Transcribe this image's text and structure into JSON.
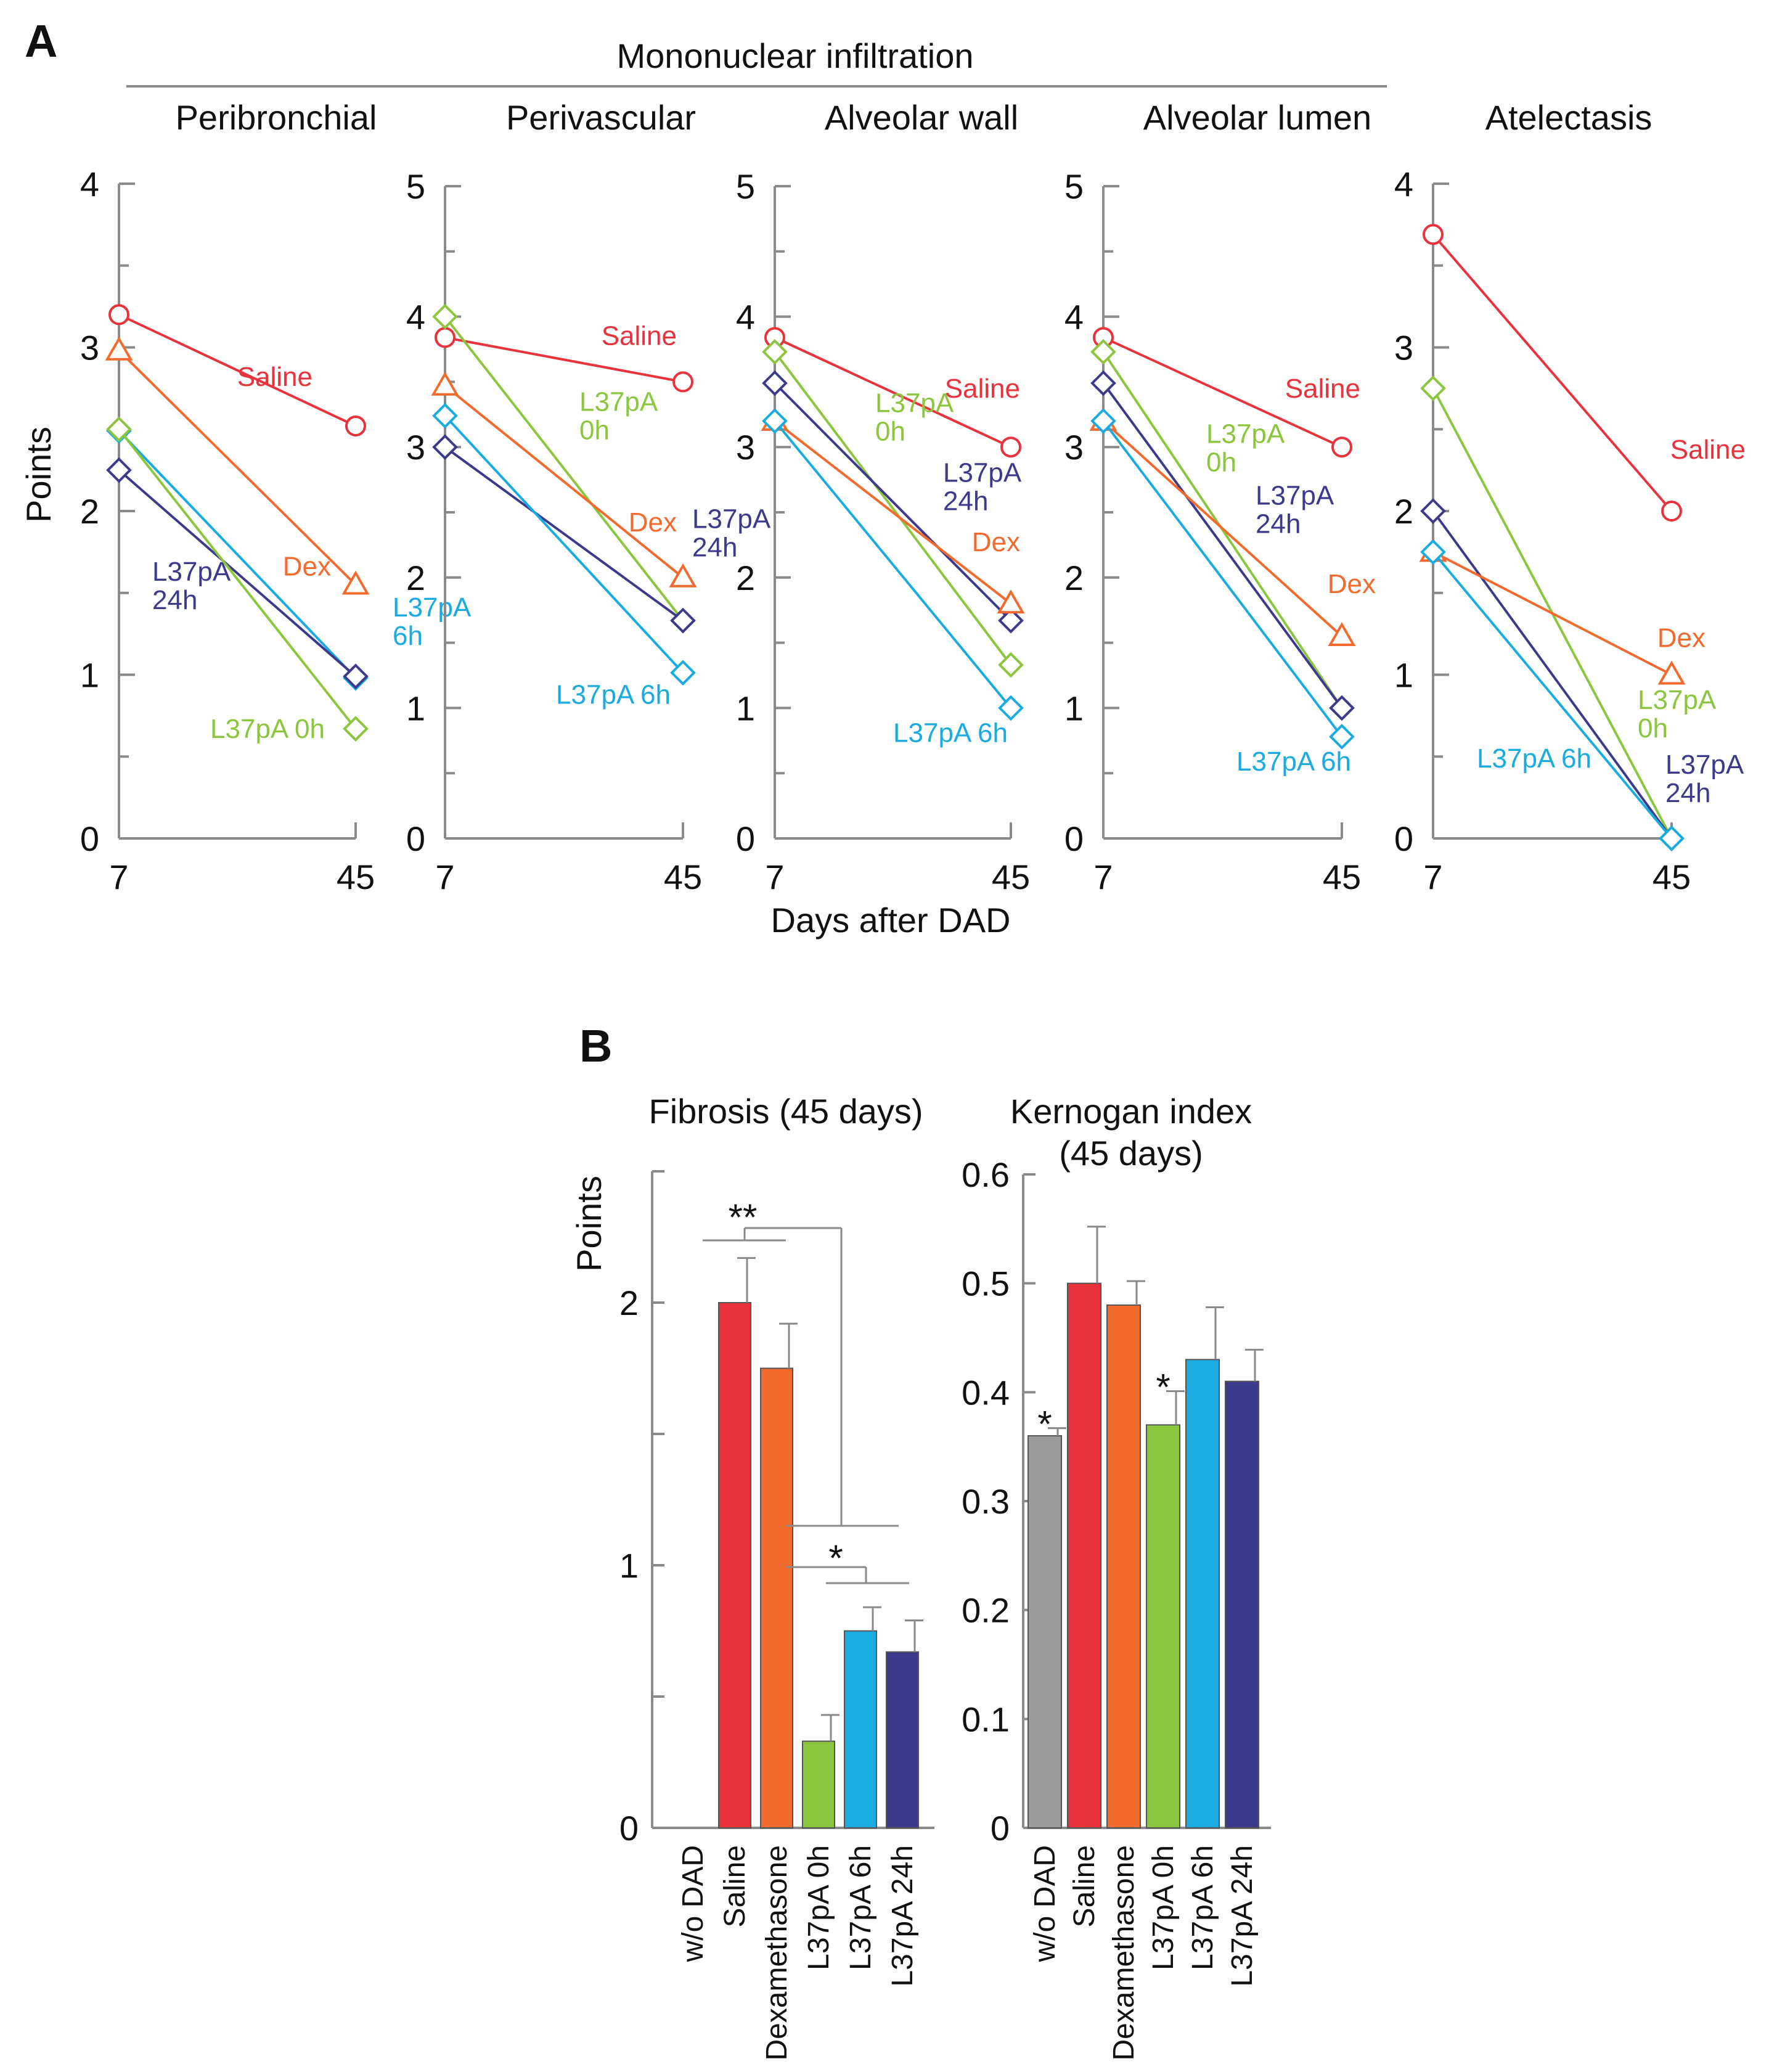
{
  "colors": {
    "saline": "#e8323c",
    "dex": "#f26a2e",
    "l0": "#8cc63f",
    "l6": "#1aabe0",
    "l24": "#3d3a8c",
    "wo": "#9b9b9b",
    "axis": "#8a8a8a",
    "text": "#1a1a1a"
  },
  "panel_a": {
    "letter": "A",
    "group_title": "Mononuclear infiltration",
    "ylabel": "Points",
    "xlabel": "Days after DAD",
    "x_ticks": [
      "7",
      "45"
    ]
  },
  "panel_b": {
    "letter": "B",
    "fib_title": "Fibrosis (45 days)",
    "ker_title_line1": "Kernogan index",
    "ker_title_line2": "(45 days)",
    "ylabel": "Points",
    "star2": "**",
    "star1": "*"
  },
  "chart_data": [
    {
      "type": "line",
      "id": "peri",
      "title": "Peribronchial",
      "x": [
        7,
        45
      ],
      "ylim": [
        0,
        4
      ],
      "yticks": [
        0,
        1,
        2,
        3,
        4
      ],
      "series": [
        {
          "name": "Saline",
          "key": "saline",
          "marker": "circle",
          "values": [
            3.2,
            2.52
          ],
          "label_lines": [
            "Saline"
          ]
        },
        {
          "name": "Dex",
          "key": "dex",
          "marker": "triangle",
          "values": [
            2.98,
            1.55
          ],
          "label_lines": [
            "Dex"
          ]
        },
        {
          "name": "L37pA 6h",
          "key": "l6",
          "marker": "diamond",
          "values": [
            2.49,
            0.98
          ],
          "label_lines": [
            "L37pA",
            "6h"
          ]
        },
        {
          "name": "L37pA 24h",
          "key": "l24",
          "marker": "diamond",
          "values": [
            2.25,
            0.99
          ],
          "label_lines": [
            "L37pA",
            "24h"
          ]
        },
        {
          "name": "L37pA 0h",
          "key": "l0",
          "marker": "diamond",
          "values": [
            2.5,
            0.67
          ],
          "label_lines": [
            "L37pA 0h"
          ]
        }
      ]
    },
    {
      "type": "line",
      "id": "periv",
      "title": "Perivascular",
      "x": [
        7,
        45
      ],
      "ylim": [
        0,
        5
      ],
      "yticks": [
        0,
        1,
        2,
        3,
        4,
        5
      ],
      "series": [
        {
          "name": "Saline",
          "key": "saline",
          "marker": "circle",
          "values": [
            3.84,
            3.5
          ],
          "label_lines": [
            "Saline"
          ]
        },
        {
          "name": "L37pA 0h",
          "key": "l0",
          "marker": "diamond",
          "values": [
            4.0,
            1.67
          ],
          "label_lines": [
            "L37pA",
            "0h"
          ]
        },
        {
          "name": "Dex",
          "key": "dex",
          "marker": "triangle",
          "values": [
            3.47,
            2.0
          ],
          "label_lines": [
            "Dex"
          ]
        },
        {
          "name": "L37pA 24h",
          "key": "l24",
          "marker": "diamond",
          "values": [
            3.0,
            1.67
          ],
          "label_lines": [
            "L37pA",
            "24h"
          ]
        },
        {
          "name": "L37pA 6h",
          "key": "l6",
          "marker": "diamond",
          "values": [
            3.24,
            1.27
          ],
          "label_lines": [
            "L37pA 6h"
          ]
        }
      ]
    },
    {
      "type": "line",
      "id": "alvw",
      "title": "Alveolar wall",
      "x": [
        7,
        45
      ],
      "ylim": [
        0,
        5
      ],
      "yticks": [
        0,
        1,
        2,
        3,
        4,
        5
      ],
      "series": [
        {
          "name": "Saline",
          "key": "saline",
          "marker": "circle",
          "values": [
            3.84,
            3.0
          ],
          "label_lines": [
            "Saline"
          ]
        },
        {
          "name": "L37pA 0h",
          "key": "l0",
          "marker": "diamond",
          "values": [
            3.73,
            1.33
          ],
          "label_lines": [
            "L37pA",
            "0h"
          ]
        },
        {
          "name": "L37pA 24h",
          "key": "l24",
          "marker": "diamond",
          "values": [
            3.49,
            1.67
          ],
          "label_lines": [
            "L37pA",
            "24h"
          ]
        },
        {
          "name": "Dex",
          "key": "dex",
          "marker": "triangle",
          "values": [
            3.2,
            1.8
          ],
          "label_lines": [
            "Dex"
          ]
        },
        {
          "name": "L37pA 6h",
          "key": "l6",
          "marker": "diamond",
          "values": [
            3.2,
            1.0
          ],
          "label_lines": [
            "L37pA 6h"
          ]
        }
      ]
    },
    {
      "type": "line",
      "id": "alvl",
      "title": "Alveolar lumen",
      "x": [
        7,
        45
      ],
      "ylim": [
        0,
        5
      ],
      "yticks": [
        0,
        1,
        2,
        3,
        4,
        5
      ],
      "series": [
        {
          "name": "Saline",
          "key": "saline",
          "marker": "circle",
          "values": [
            3.84,
            3.0
          ],
          "label_lines": [
            "Saline"
          ]
        },
        {
          "name": "L37pA 0h",
          "key": "l0",
          "marker": "diamond",
          "values": [
            3.73,
            1.0
          ],
          "label_lines": [
            "L37pA",
            "0h"
          ]
        },
        {
          "name": "L37pA 24h",
          "key": "l24",
          "marker": "diamond",
          "values": [
            3.49,
            1.0
          ],
          "label_lines": [
            "L37pA",
            "24h"
          ]
        },
        {
          "name": "Dex",
          "key": "dex",
          "marker": "triangle",
          "values": [
            3.2,
            1.55
          ],
          "label_lines": [
            "Dex"
          ]
        },
        {
          "name": "L37pA 6h",
          "key": "l6",
          "marker": "diamond",
          "values": [
            3.2,
            0.78
          ],
          "label_lines": [
            "L37pA 6h"
          ]
        }
      ]
    },
    {
      "type": "line",
      "id": "atel",
      "title": "Atelectasis",
      "x": [
        7,
        45
      ],
      "ylim": [
        0,
        4
      ],
      "yticks": [
        0,
        1,
        2,
        3,
        4
      ],
      "series": [
        {
          "name": "Saline",
          "key": "saline",
          "marker": "circle",
          "values": [
            3.69,
            2.0
          ],
          "label_lines": [
            "Saline"
          ]
        },
        {
          "name": "L37pA 0h",
          "key": "l0",
          "marker": "diamond",
          "values": [
            2.75,
            0.0
          ],
          "label_lines": [
            "L37pA",
            "0h"
          ]
        },
        {
          "name": "L37pA 24h",
          "key": "l24",
          "marker": "diamond",
          "values": [
            2.0,
            0.0
          ],
          "label_lines": [
            "L37pA",
            "24h"
          ]
        },
        {
          "name": "Dex",
          "key": "dex",
          "marker": "triangle",
          "values": [
            1.75,
            1.0
          ],
          "label_lines": [
            "Dex"
          ]
        },
        {
          "name": "L37pA 6h",
          "key": "l6",
          "marker": "diamond",
          "values": [
            1.75,
            0.0
          ],
          "label_lines": [
            "L37pA 6h"
          ]
        }
      ]
    },
    {
      "type": "bar",
      "id": "fib",
      "title": "Fibrosis (45 days)",
      "ylabel": "Points",
      "ylim": [
        0,
        2.5
      ],
      "yticks": [
        0,
        1,
        2
      ],
      "categories": [
        "w/o DAD",
        "Saline",
        "Dexamethasone",
        "L37pA 0h",
        "L37pA 6h",
        "L37pA 24h"
      ],
      "keys": [
        "wo",
        "saline",
        "dex",
        "l0",
        "l6",
        "l24"
      ],
      "values": [
        0,
        2.0,
        1.75,
        0.33,
        0.75,
        0.67
      ],
      "errors": [
        0,
        0.17,
        0.17,
        0.1,
        0.09,
        0.12
      ],
      "annotations": [
        "**",
        "*"
      ]
    },
    {
      "type": "bar",
      "id": "ker",
      "title": "Kernogan index (45 days)",
      "ylim": [
        0,
        0.6
      ],
      "yticks": [
        0,
        0.1,
        0.2,
        0.3,
        0.4,
        0.5,
        0.6
      ],
      "categories": [
        "w/o DAD",
        "Saline",
        "Dexamethasone",
        "L37pA 0h",
        "L37pA 6h",
        "L37pA 24h"
      ],
      "keys": [
        "wo",
        "saline",
        "dex",
        "l0",
        "l6",
        "l24"
      ],
      "values": [
        0.36,
        0.5,
        0.48,
        0.37,
        0.43,
        0.41
      ],
      "errors": [
        0.007,
        0.052,
        0.022,
        0.031,
        0.048,
        0.029
      ],
      "star_categories": [
        "w/o DAD",
        "L37pA 0h"
      ],
      "annotations": [
        "*",
        "*"
      ]
    }
  ]
}
